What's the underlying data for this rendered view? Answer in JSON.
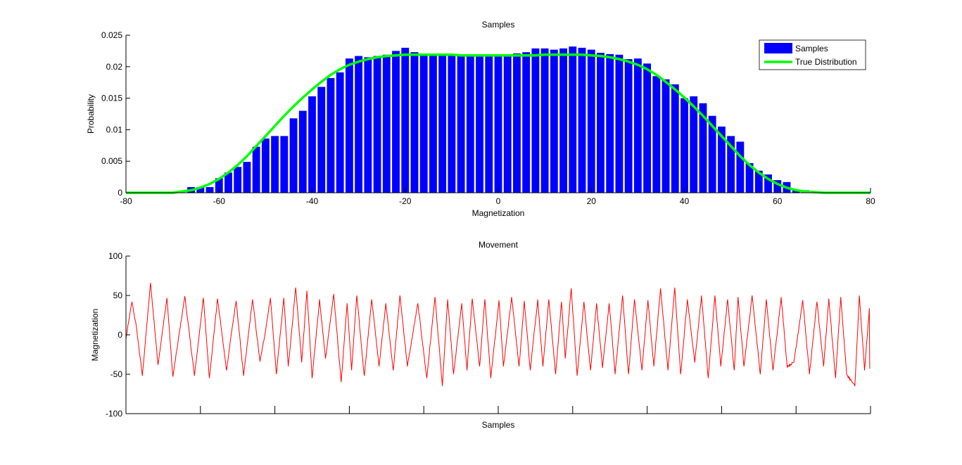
{
  "chart_data": [
    {
      "type": "bar",
      "title": "Samples",
      "xlabel": "Magnetization",
      "ylabel": "Probability",
      "xlim": [
        -80,
        80
      ],
      "ylim": [
        0,
        0.025
      ],
      "xticks": [
        "-80",
        "-60",
        "-40",
        "-20",
        "0",
        "20",
        "40",
        "60",
        "80"
      ],
      "yticks": [
        "0",
        "0.005",
        "0.01",
        "0.015",
        "0.02",
        "0.025"
      ],
      "legend_position": "top-right",
      "series": [
        {
          "name": "Samples",
          "color": "#0000ff",
          "x": [
            -66,
            -64,
            -62,
            -60,
            -58,
            -56,
            -54,
            -52,
            -50,
            -48,
            -46,
            -44,
            -42,
            -40,
            -38,
            -36,
            -34,
            -32,
            -30,
            -28,
            -26,
            -24,
            -22,
            -20,
            -18,
            -16,
            -14,
            -12,
            -10,
            -8,
            -6,
            -4,
            -2,
            0,
            2,
            4,
            6,
            8,
            10,
            12,
            14,
            16,
            18,
            20,
            22,
            24,
            26,
            28,
            30,
            32,
            34,
            36,
            38,
            40,
            42,
            44,
            46,
            48,
            50,
            52,
            54,
            56,
            58,
            60,
            62,
            64,
            66
          ],
          "values": [
            0.0009,
            0.0009,
            0.0009,
            0.0023,
            0.0032,
            0.0041,
            0.0049,
            0.0073,
            0.0086,
            0.009,
            0.009,
            0.0118,
            0.013,
            0.0153,
            0.0168,
            0.0182,
            0.0191,
            0.0213,
            0.0217,
            0.0215,
            0.0217,
            0.0219,
            0.0225,
            0.023,
            0.0223,
            0.0219,
            0.0218,
            0.0218,
            0.0218,
            0.0218,
            0.0218,
            0.0219,
            0.0218,
            0.0218,
            0.0219,
            0.0221,
            0.0223,
            0.0229,
            0.0229,
            0.0227,
            0.0229,
            0.0232,
            0.023,
            0.0227,
            0.0222,
            0.022,
            0.0219,
            0.0212,
            0.0213,
            0.0205,
            0.0185,
            0.018,
            0.0172,
            0.015,
            0.0153,
            0.0142,
            0.0122,
            0.0105,
            0.009,
            0.0081,
            0.0047,
            0.0035,
            0.0029,
            0.002,
            0.0017,
            0.0004,
            0.0004
          ]
        },
        {
          "name": "True Distribution",
          "color": "#00ff00",
          "type": "line",
          "x": [
            -80,
            -70,
            -68,
            -66,
            -64,
            -62,
            -60,
            -58,
            -56,
            -54,
            -52,
            -50,
            -48,
            -46,
            -44,
            -42,
            -40,
            -38,
            -36,
            -34,
            -32,
            -30,
            -28,
            -26,
            -24,
            -22,
            -20,
            -18,
            -16,
            -14,
            -12,
            -10,
            -8,
            -6,
            -4,
            -2,
            0,
            2,
            4,
            6,
            8,
            10,
            12,
            14,
            16,
            18,
            20,
            22,
            24,
            26,
            28,
            30,
            32,
            34,
            36,
            38,
            40,
            42,
            44,
            46,
            48,
            50,
            52,
            54,
            56,
            58,
            60,
            62,
            64,
            66,
            68,
            70,
            80
          ],
          "values": [
            0.0,
            0.0,
            0.0002,
            0.0004,
            0.0008,
            0.0014,
            0.0022,
            0.0032,
            0.0044,
            0.0058,
            0.0074,
            0.009,
            0.0106,
            0.0122,
            0.0137,
            0.0151,
            0.0164,
            0.0176,
            0.0187,
            0.0196,
            0.0203,
            0.0208,
            0.0212,
            0.0215,
            0.0217,
            0.0218,
            0.0219,
            0.0219,
            0.0219,
            0.0219,
            0.0219,
            0.0219,
            0.0218,
            0.0218,
            0.0218,
            0.0218,
            0.0218,
            0.0218,
            0.0218,
            0.0218,
            0.0218,
            0.0219,
            0.0219,
            0.0219,
            0.0219,
            0.0219,
            0.0218,
            0.0217,
            0.0215,
            0.0212,
            0.0208,
            0.0203,
            0.0196,
            0.0187,
            0.0176,
            0.0164,
            0.0151,
            0.0137,
            0.0122,
            0.0106,
            0.009,
            0.0074,
            0.0058,
            0.0044,
            0.0032,
            0.0022,
            0.0014,
            0.0008,
            0.0004,
            0.0002,
            0.0001,
            0.0,
            0.0
          ]
        }
      ]
    },
    {
      "type": "line",
      "title": "Movement",
      "xlabel": "Samples",
      "ylabel": "Magnetization",
      "xlim": [
        0,
        1000
      ],
      "ylim": [
        -100,
        100
      ],
      "yticks": [
        "-100",
        "-50",
        "0",
        "50",
        "100"
      ],
      "x_tick_positions": [
        0,
        100,
        200,
        300,
        400,
        500,
        600,
        700,
        800,
        900,
        1000
      ],
      "series": [
        {
          "name": "Movement",
          "color": "#ff0000",
          "peaks_x": [
            0,
            8,
            14,
            22,
            33,
            43,
            55,
            63,
            79,
            92,
            104,
            112,
            123,
            135,
            142,
            148,
            158,
            170,
            180,
            187,
            194,
            202,
            212,
            218,
            228,
            236,
            243,
            250,
            260,
            268,
            279,
            289,
            297,
            303,
            310,
            320,
            330,
            340,
            349,
            359,
            368,
            378,
            392,
            404,
            415,
            425,
            432,
            440,
            451,
            458,
            465,
            475,
            482,
            490,
            501,
            507,
            518,
            528,
            535,
            543,
            553,
            560,
            568,
            577,
            585,
            590,
            598,
            606,
            615,
            624,
            632,
            640,
            649,
            657,
            667,
            675,
            683,
            693,
            701,
            709,
            718,
            728,
            737,
            745,
            754,
            764,
            773,
            782,
            791,
            799,
            808,
            817,
            822,
            830,
            841,
            852,
            860,
            869,
            880,
            888,
            897,
            909,
            918,
            928,
            937,
            944,
            953,
            960,
            968,
            979,
            985,
            992,
            999
          ],
          "peaks_y": [
            -5,
            42,
            10,
            -52,
            66,
            -38,
            47,
            -53,
            49,
            -52,
            47,
            -55,
            46,
            -45,
            5,
            43,
            -52,
            45,
            -34,
            3,
            47,
            -50,
            47,
            -40,
            60,
            -35,
            56,
            -55,
            45,
            -30,
            52,
            -60,
            40,
            -45,
            50,
            -52,
            45,
            -40,
            40,
            -45,
            50,
            -40,
            40,
            -55,
            48,
            -65,
            45,
            -50,
            40,
            -45,
            46,
            -40,
            45,
            -55,
            44,
            -40,
            48,
            -40,
            43,
            -45,
            45,
            -40,
            45,
            -50,
            42,
            -30,
            59,
            -52,
            42,
            -45,
            40,
            -42,
            40,
            -50,
            50,
            -50,
            45,
            -45,
            44,
            -40,
            59,
            -45,
            60,
            -50,
            45,
            -35,
            50,
            -55,
            50,
            -40,
            45,
            -45,
            48,
            -40,
            50,
            -50,
            45,
            -45,
            48,
            -40,
            -35,
            44,
            -50,
            42,
            -40,
            46,
            -55,
            48,
            -50,
            -65,
            50,
            -45,
            40,
            -47,
            -43
          ]
        }
      ]
    }
  ]
}
